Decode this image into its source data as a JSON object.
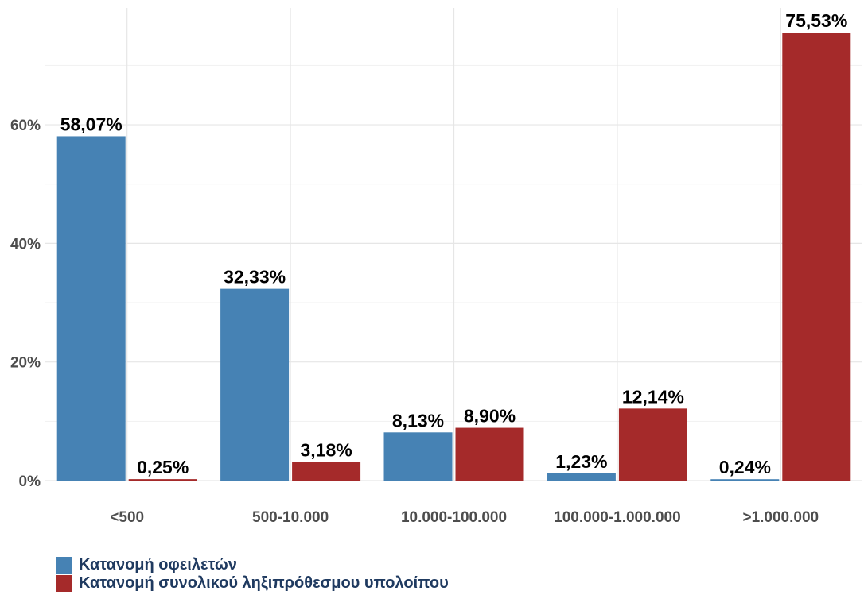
{
  "chart_data": {
    "type": "bar",
    "categories": [
      "<500",
      "500-10.000",
      "10.000-100.000",
      "100.000-1.000.000",
      ">1.000.000"
    ],
    "series": [
      {
        "name": "Κατανομή οφειλετών",
        "color": "#4682b4",
        "values": [
          58.07,
          32.33,
          8.13,
          1.23,
          0.24
        ],
        "labels": [
          "58,07%",
          "32,33%",
          "8,13%",
          "1,23%",
          "0,24%"
        ]
      },
      {
        "name": "Κατανομή συνολικού ληξιπρόθεσμου υπολοίπου",
        "color": "#a52a2a",
        "values": [
          0.25,
          3.18,
          8.9,
          12.14,
          75.53
        ],
        "labels": [
          "0,25%",
          "3,18%",
          "8,90%",
          "12,14%",
          "75,53%"
        ]
      }
    ],
    "ylim": [
      0,
      78
    ],
    "yticks": [
      {
        "value": 0,
        "label": "0%"
      },
      {
        "value": 20,
        "label": "20%"
      },
      {
        "value": 40,
        "label": "40%"
      },
      {
        "value": 60,
        "label": "60%"
      }
    ],
    "minor_gridlines": [
      10,
      30,
      50,
      70
    ],
    "grid": true,
    "legend_position": "bottom-left",
    "xlabel": "",
    "ylabel": "",
    "title": ""
  }
}
